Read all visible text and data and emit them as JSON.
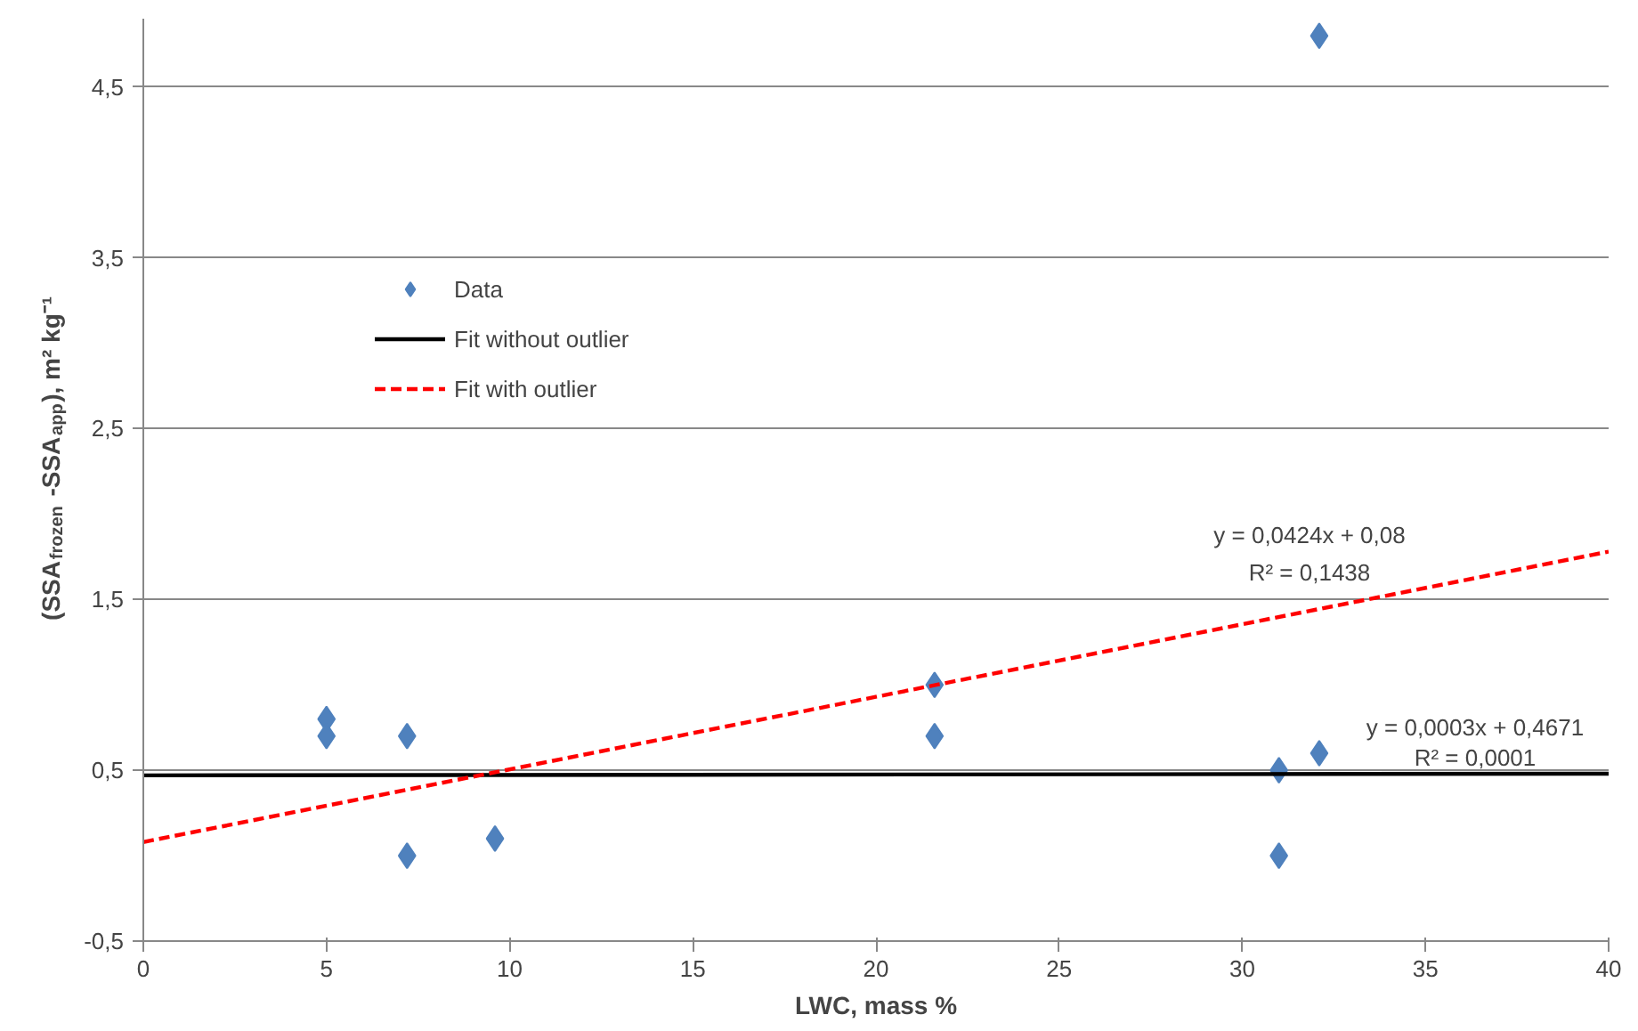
{
  "chart_data": {
    "type": "scatter",
    "xlabel": "LWC, mass %",
    "ylabel": "(SSA$_{frozen}$-SSA$_{app}$), m² kg⁻¹",
    "xlim": [
      0,
      40
    ],
    "xticks": [
      0,
      5,
      10,
      15,
      20,
      25,
      30,
      35,
      40
    ],
    "ylim": [
      -0.5,
      4.9
    ],
    "yticks": [
      {
        "value": -0.5,
        "label": "-0,5"
      },
      {
        "value": 0.5,
        "label": "0,5"
      },
      {
        "value": 1.5,
        "label": "1,5"
      },
      {
        "value": 2.5,
        "label": "2,5"
      },
      {
        "value": 3.5,
        "label": "3,5"
      },
      {
        "value": 4.5,
        "label": "4,5"
      }
    ],
    "grid": "y",
    "legend": "top left",
    "series": [
      {
        "name": "Data",
        "marker": "diamond",
        "color": "#4f81bd",
        "x": [
          5,
          5,
          7.2,
          7.2,
          9.6,
          21.6,
          21.6,
          31,
          31,
          32.1,
          32.1
        ],
        "values": [
          0.8,
          0.7,
          0.7,
          0.0,
          0.1,
          1.0,
          0.7,
          0.5,
          0.0,
          0.6,
          4.8
        ]
      },
      {
        "name": "Fit without outlier",
        "type": "line",
        "line_style": "solid",
        "color": "#000000",
        "x": [
          0,
          40
        ],
        "values": [
          0.47,
          0.48
        ]
      },
      {
        "name": "Fit with outlier",
        "type": "line",
        "line_style": "dashed",
        "color": "#ff0000",
        "x": [
          0,
          40
        ],
        "values": [
          0.08,
          1.78
        ]
      }
    ],
    "annotations": [
      "y = 0,0424x + 0,08",
      "R² = 0,1438",
      "y = 0,0003x + 0,4671",
      "R² = 0,0001"
    ]
  }
}
